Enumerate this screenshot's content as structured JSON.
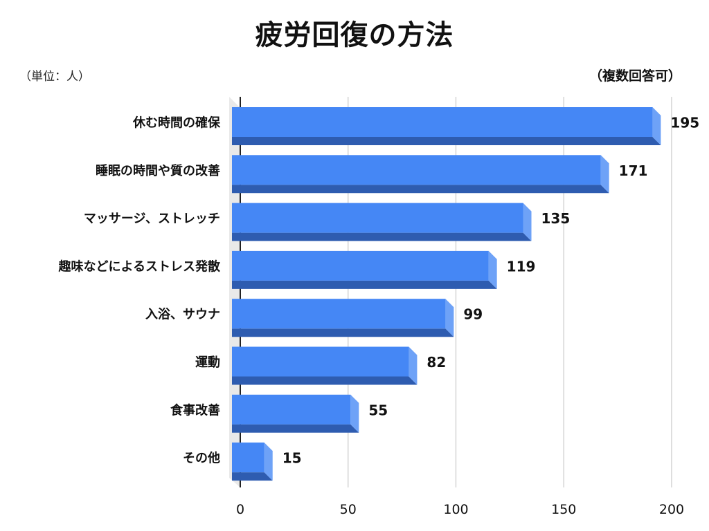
{
  "chart_data": {
    "type": "bar",
    "orientation": "horizontal",
    "title": "疲労回復の方法",
    "unit_label": "（単位：人）",
    "note": "（複数回答可）",
    "categories": [
      "休む時間の確保",
      "睡眠の時間や質の改善",
      "マッサージ、ストレッチ",
      "趣味などによるストレス発散",
      "入浴、サウナ",
      "運動",
      "食事改善",
      "その他"
    ],
    "values": [
      195,
      171,
      135,
      119,
      99,
      82,
      55,
      15
    ],
    "xlim": [
      0,
      200
    ],
    "xticks": [
      "0",
      "50",
      "100",
      "150",
      "200"
    ],
    "grid": true,
    "bar_color": "#4587F5",
    "bar_shadow_color": "#2E5CB0",
    "bar_side_color": "#6EA2F7"
  }
}
